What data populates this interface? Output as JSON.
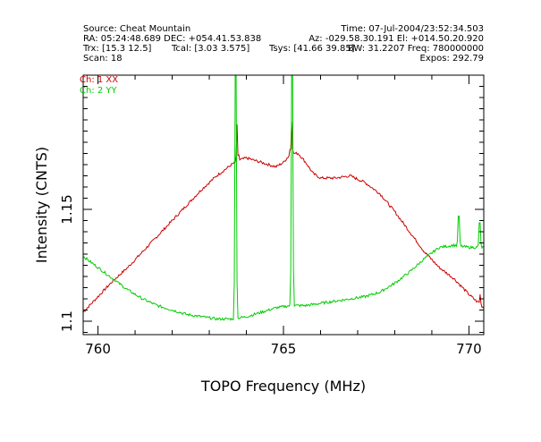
{
  "header": {
    "source": "Source: Cheat Mountain",
    "time": "Time: 07-Jul-2004/23:52:34.503",
    "ra_dec": "RA: 05:24:48.689 DEC: +054.41.53.838",
    "az_el": "Az: -029.58.30.191 El: +014.50.20.920",
    "trx": "Trx: [15.3 12.5]",
    "tcal": "Tcal: [3.03 3.575]",
    "tsys": "Tsys: [41.66 39.85]",
    "bw_freq": "BW: 31.2207 Freq: 780000000",
    "scan": "Scan: 18",
    "expos": "Expos: 292.79"
  },
  "chart_data": {
    "type": "line",
    "title": "",
    "xlabel": "TOPO Frequency (MHz)",
    "ylabel": "Intensity (CNTS)",
    "xlim": [
      759.6,
      770.4
    ],
    "ylim": [
      1.094,
      1.21
    ],
    "x_ticks": [
      760,
      765,
      770
    ],
    "x_tick_labels": [
      "760",
      "765",
      "770"
    ],
    "y_ticks": [
      1.1,
      1.15
    ],
    "y_tick_labels": [
      "1.1",
      "1.15"
    ],
    "legend_position": "top-left",
    "series": [
      {
        "name": "Ch: 1 XX",
        "color": "#cc0000",
        "x": [
          759.6,
          760.0,
          760.4,
          760.8,
          761.2,
          761.6,
          762.0,
          762.4,
          762.8,
          763.2,
          763.6,
          763.8,
          764.0,
          764.4,
          764.8,
          765.0,
          765.2,
          765.4,
          765.6,
          765.8,
          766.0,
          766.4,
          766.8,
          767.2,
          767.6,
          768.0,
          768.4,
          768.8,
          769.2,
          769.6,
          770.0,
          770.4
        ],
        "y": [
          1.104,
          1.111,
          1.118,
          1.124,
          1.131,
          1.138,
          1.145,
          1.152,
          1.159,
          1.165,
          1.17,
          1.172,
          1.173,
          1.171,
          1.169,
          1.171,
          1.175,
          1.175,
          1.171,
          1.166,
          1.164,
          1.164,
          1.165,
          1.162,
          1.157,
          1.149,
          1.14,
          1.131,
          1.124,
          1.119,
          1.112,
          1.106
        ],
        "spikes": [
          {
            "x": 763.75,
            "y": 1.188
          },
          {
            "x": 765.22,
            "y": 1.189
          },
          {
            "x": 770.3,
            "y": 1.112
          }
        ]
      },
      {
        "name": "Ch: 2 YY",
        "color": "#00cc00",
        "x": [
          759.6,
          760.0,
          760.4,
          760.8,
          761.2,
          761.6,
          762.0,
          762.4,
          762.8,
          763.2,
          763.6,
          764.0,
          764.4,
          764.8,
          765.2,
          765.6,
          766.0,
          766.4,
          766.8,
          767.2,
          767.6,
          768.0,
          768.4,
          768.8,
          769.2,
          769.6,
          770.0,
          770.4
        ],
        "y": [
          1.129,
          1.124,
          1.119,
          1.114,
          1.11,
          1.107,
          1.105,
          1.103,
          1.102,
          1.101,
          1.101,
          1.102,
          1.104,
          1.106,
          1.107,
          1.107,
          1.108,
          1.109,
          1.11,
          1.111,
          1.113,
          1.117,
          1.122,
          1.128,
          1.133,
          1.134,
          1.133,
          1.133
        ],
        "spikes": [
          {
            "x": 763.72,
            "y": 1.21
          },
          {
            "x": 765.24,
            "y": 1.21
          },
          {
            "x": 769.72,
            "y": 1.147
          },
          {
            "x": 770.28,
            "y": 1.144
          }
        ]
      }
    ]
  }
}
